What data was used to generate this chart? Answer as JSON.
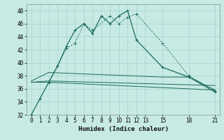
{
  "xlabel": "Humidex (Indice chaleur)",
  "bg_color": "#c8eae4",
  "grid_color": "#a8d8d0",
  "line_color": "#1a6b5a",
  "xlim": [
    -0.5,
    21.5
  ],
  "ylim": [
    32,
    49
  ],
  "xticks": [
    0,
    1,
    2,
    3,
    4,
    5,
    6,
    7,
    8,
    9,
    10,
    11,
    12,
    13,
    15,
    18,
    21
  ],
  "yticks": [
    32,
    34,
    36,
    38,
    40,
    42,
    44,
    46,
    48
  ],
  "line1_x": [
    0,
    1,
    2,
    3,
    4,
    5,
    6,
    7,
    8,
    9,
    10,
    11,
    12,
    15,
    18,
    21
  ],
  "line1_y": [
    32,
    34.5,
    37,
    39.5,
    42.5,
    45,
    46,
    44.5,
    47.2,
    46,
    47.2,
    48,
    43.5,
    39.3,
    37.8,
    35.5
  ],
  "line2_x": [
    2,
    3,
    4,
    5,
    6,
    7,
    9,
    10,
    11,
    12,
    15,
    18,
    21
  ],
  "line2_y": [
    37,
    39.5,
    42.2,
    43,
    46,
    45,
    47.2,
    46,
    47,
    47.5,
    43,
    38,
    35.7
  ],
  "line3_x": [
    0,
    2,
    15,
    18,
    21
  ],
  "line3_y": [
    37.2,
    38.5,
    37.8,
    37.8,
    35.8
  ],
  "line4_x": [
    0,
    2,
    21
  ],
  "line4_y": [
    37.0,
    37.2,
    36.5
  ],
  "line5_x": [
    0,
    2,
    21
  ],
  "line5_y": [
    37.0,
    37.0,
    35.8
  ]
}
